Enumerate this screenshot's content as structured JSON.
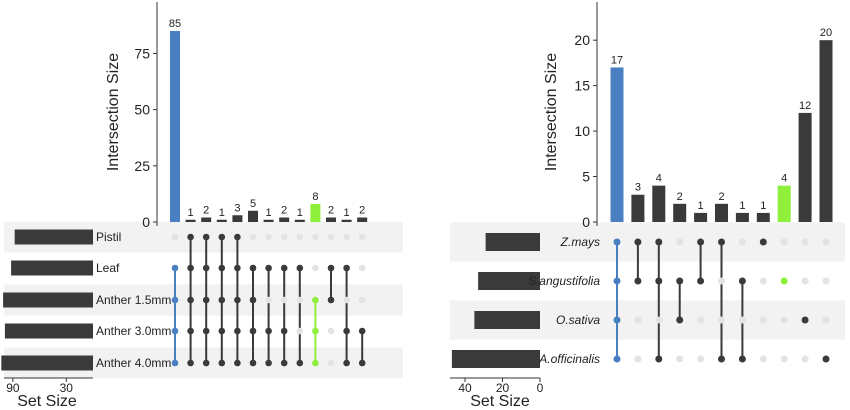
{
  "colors": {
    "bar": "#3a3a3a",
    "highlight_blue": "#4a7fc1",
    "highlight_green": "#8ef03a",
    "dot_off": "#e3e3e3",
    "stripe": "#f2f2f2"
  },
  "chart_data": [
    {
      "type": "bar",
      "chart_kind": "upset",
      "ylabel": "Intersection Size",
      "yticks": [
        0,
        25,
        50,
        75
      ],
      "ylim": [
        0,
        89
      ],
      "set_size_label": "Set Size",
      "set_size_ticks": [
        90,
        30
      ],
      "set_size_xlim": [
        0,
        100
      ],
      "sets": [
        "Pistil",
        "Leaf",
        "Anther 1.5mm",
        "Anther 3.0mm",
        "Anther 4.0mm"
      ],
      "set_label_style": "plain",
      "set_sizes": [
        88,
        92,
        101,
        99,
        103
      ],
      "intersections": [
        {
          "value": 85,
          "members": [
            0,
            1,
            1,
            1,
            1
          ],
          "highlight": "blue"
        },
        {
          "value": 1,
          "members": [
            1,
            1,
            1,
            1,
            1
          ],
          "highlight": ""
        },
        {
          "value": 2,
          "members": [
            1,
            1,
            1,
            1,
            1
          ],
          "highlight": ""
        },
        {
          "value": 1,
          "members": [
            1,
            1,
            1,
            1,
            1
          ],
          "highlight": ""
        },
        {
          "value": 3,
          "members": [
            1,
            1,
            1,
            1,
            1
          ],
          "highlight": ""
        },
        {
          "value": 5,
          "members": [
            0,
            1,
            1,
            1,
            1
          ],
          "highlight": ""
        },
        {
          "value": 1,
          "members": [
            0,
            1,
            0,
            1,
            1
          ],
          "highlight": ""
        },
        {
          "value": 2,
          "members": [
            0,
            1,
            0,
            1,
            1
          ],
          "highlight": ""
        },
        {
          "value": 1,
          "members": [
            0,
            1,
            0,
            0,
            1
          ],
          "highlight": ""
        },
        {
          "value": 8,
          "members": [
            0,
            0,
            1,
            1,
            1
          ],
          "highlight": "green"
        },
        {
          "value": 2,
          "members": [
            0,
            1,
            1,
            0,
            0
          ],
          "highlight": ""
        },
        {
          "value": 1,
          "members": [
            0,
            1,
            0,
            1,
            1
          ],
          "highlight": ""
        },
        {
          "value": 2,
          "members": [
            0,
            0,
            0,
            1,
            1
          ],
          "highlight": ""
        }
      ]
    },
    {
      "type": "bar",
      "chart_kind": "upset",
      "ylabel": "Intersection Size",
      "yticks": [
        0,
        5,
        10,
        15,
        20
      ],
      "ylim": [
        0,
        22
      ],
      "set_size_label": "Set Size",
      "set_size_ticks": [
        40,
        20,
        0
      ],
      "set_size_xlim": [
        0,
        48
      ],
      "sets": [
        "Z.mays",
        "S.angustifolia",
        "O.sativa",
        "A.officinalis"
      ],
      "set_label_style": "italic",
      "set_sizes": [
        29,
        33,
        35,
        47
      ],
      "intersections": [
        {
          "value": 17,
          "members": [
            1,
            1,
            1,
            1
          ],
          "highlight": "blue"
        },
        {
          "value": 3,
          "members": [
            1,
            1,
            0,
            0
          ],
          "highlight": ""
        },
        {
          "value": 4,
          "members": [
            1,
            1,
            0,
            1
          ],
          "highlight": ""
        },
        {
          "value": 2,
          "members": [
            0,
            1,
            1,
            0
          ],
          "highlight": ""
        },
        {
          "value": 1,
          "members": [
            1,
            1,
            0,
            0
          ],
          "highlight": ""
        },
        {
          "value": 2,
          "members": [
            1,
            0,
            0,
            1
          ],
          "highlight": ""
        },
        {
          "value": 1,
          "members": [
            0,
            1,
            0,
            1
          ],
          "highlight": ""
        },
        {
          "value": 1,
          "members": [
            1,
            0,
            0,
            0
          ],
          "highlight": ""
        },
        {
          "value": 4,
          "members": [
            0,
            1,
            0,
            0
          ],
          "highlight": "green"
        },
        {
          "value": 12,
          "members": [
            0,
            0,
            1,
            0
          ],
          "highlight": ""
        },
        {
          "value": 20,
          "members": [
            0,
            0,
            0,
            1
          ],
          "highlight": ""
        }
      ]
    }
  ]
}
